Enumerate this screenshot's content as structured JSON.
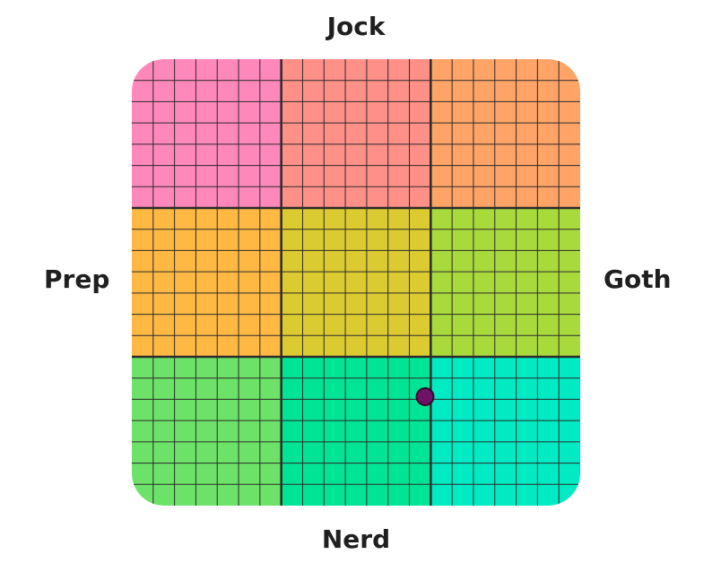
{
  "axes": {
    "top": "Jock",
    "bottom": "Nerd",
    "left": "Prep",
    "right": "Goth"
  },
  "grid": {
    "rows": 3,
    "cols": 3,
    "subdivisions": 7,
    "cell_colors": [
      [
        "#ff88bb",
        "#ff9088",
        "#ffa466"
      ],
      [
        "#ffb943",
        "#dccb30",
        "#a8da3c"
      ],
      [
        "#6ce368",
        "#00e496",
        "#00ebc4"
      ]
    ],
    "line_color": "#2b2b2b",
    "border_color": "#2b2b2b"
  },
  "marker": {
    "x": 0.308,
    "y": -0.512,
    "fill": "#6e1266",
    "stroke": "#2a0a28"
  },
  "chart_data": {
    "type": "scatter",
    "xlabel_left": "Prep",
    "xlabel_right": "Goth",
    "ylabel_top": "Jock",
    "ylabel_bottom": "Nerd",
    "xlim": [
      -1,
      1
    ],
    "ylim": [
      -1,
      1
    ],
    "points": [
      {
        "x": 0.308,
        "y": -0.512
      }
    ]
  }
}
